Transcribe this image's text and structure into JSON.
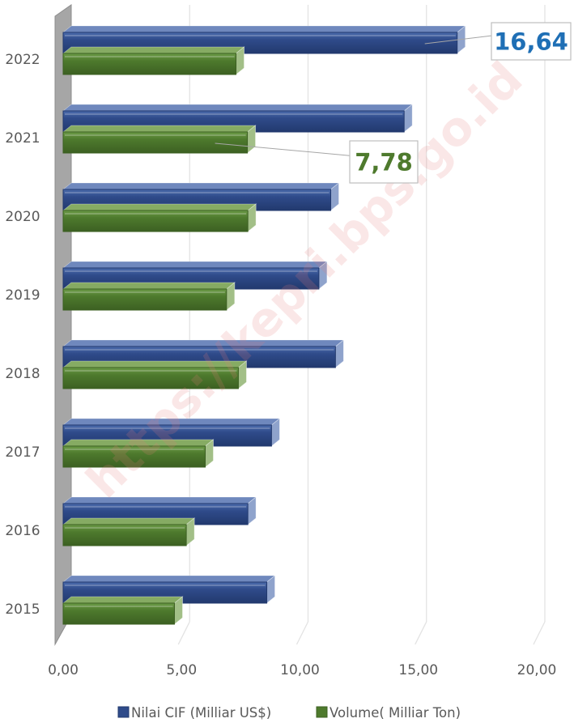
{
  "chart_data": {
    "type": "bar",
    "orientation": "horizontal",
    "categories": [
      "2022",
      "2021",
      "2020",
      "2019",
      "2018",
      "2017",
      "2016",
      "2015"
    ],
    "series": [
      {
        "name": "Nilai CIF (Milliar US$)",
        "color": "#2f4b8a",
        "values": [
          16.64,
          14.4,
          11.3,
          10.8,
          11.5,
          8.8,
          7.8,
          8.6
        ]
      },
      {
        "name": "Volume( Milliar Ton)",
        "color": "#4e7a2d",
        "values": [
          7.3,
          7.78,
          7.8,
          6.9,
          7.4,
          6.0,
          5.2,
          4.7
        ]
      }
    ],
    "xlim": [
      0,
      20
    ],
    "xticks": [
      "0,00",
      "5,00",
      "10,00",
      "15,00",
      "20,00"
    ],
    "grid": true,
    "legend_position": "bottom",
    "annotations": [
      {
        "text": "16,64",
        "category": "2022",
        "series": "Nilai CIF (Milliar US$)",
        "color": "#1f6fb5"
      },
      {
        "text": "7,78",
        "category": "2021",
        "series": "Volume( Milliar Ton)",
        "color": "#4e7a2d"
      }
    ]
  },
  "watermark": "https://kepri.bps.go.id"
}
